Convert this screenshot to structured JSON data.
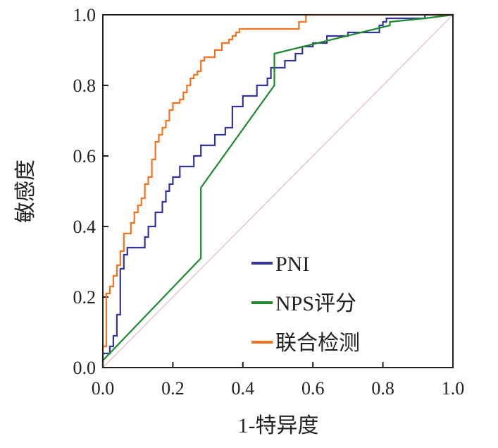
{
  "chart_data": {
    "type": "line",
    "title": "",
    "xlabel": "1-特异度",
    "ylabel": "敏感度",
    "xlim": [
      0,
      1
    ],
    "ylim": [
      0,
      1
    ],
    "xticks": [
      "0.0",
      "0.2",
      "0.4",
      "0.6",
      "0.8",
      "1.0"
    ],
    "yticks": [
      "0.0",
      "0.2",
      "0.4",
      "0.6",
      "0.8",
      "1.0"
    ],
    "grid": false,
    "legend_position": "bottom-right",
    "reference_line": {
      "x": [
        0,
        1
      ],
      "y": [
        0,
        1
      ],
      "color": "#e4b8b8"
    },
    "series": [
      {
        "name": "PNI",
        "color": "#33349a",
        "x": [
          0,
          0,
          0.02,
          0.02,
          0.03,
          0.03,
          0.04,
          0.04,
          0.05,
          0.05,
          0.06,
          0.06,
          0.07,
          0.07,
          0.12,
          0.12,
          0.13,
          0.13,
          0.15,
          0.15,
          0.17,
          0.17,
          0.18,
          0.18,
          0.19,
          0.19,
          0.2,
          0.2,
          0.22,
          0.22,
          0.26,
          0.26,
          0.28,
          0.28,
          0.32,
          0.32,
          0.35,
          0.35,
          0.37,
          0.37,
          0.4,
          0.4,
          0.44,
          0.44,
          0.47,
          0.47,
          0.48,
          0.48,
          0.52,
          0.52,
          0.55,
          0.55,
          0.57,
          0.57,
          0.6,
          0.6,
          0.64,
          0.64,
          0.7,
          0.7,
          0.79,
          0.79,
          0.8,
          0.8,
          0.81,
          0.81,
          0.84,
          0.84,
          0.92,
          0.92,
          1
        ],
        "y": [
          0,
          0.04,
          0.04,
          0.06,
          0.06,
          0.09,
          0.09,
          0.15,
          0.15,
          0.28,
          0.28,
          0.32,
          0.32,
          0.34,
          0.34,
          0.37,
          0.37,
          0.4,
          0.4,
          0.44,
          0.44,
          0.47,
          0.47,
          0.5,
          0.5,
          0.52,
          0.52,
          0.54,
          0.54,
          0.57,
          0.57,
          0.6,
          0.6,
          0.63,
          0.63,
          0.66,
          0.66,
          0.68,
          0.68,
          0.74,
          0.74,
          0.77,
          0.77,
          0.8,
          0.8,
          0.82,
          0.82,
          0.85,
          0.85,
          0.87,
          0.87,
          0.89,
          0.89,
          0.91,
          0.91,
          0.92,
          0.92,
          0.94,
          0.94,
          0.95,
          0.95,
          0.97,
          0.97,
          0.98,
          0.98,
          0.99,
          0.99,
          0.99,
          0.99,
          1,
          1
        ]
      },
      {
        "name": "NPS评分",
        "color": "#1b8a2a",
        "x": [
          0,
          0,
          0.28,
          0.28,
          0.49,
          0.49,
          0.82,
          0.82,
          0.92,
          1
        ],
        "y": [
          0,
          0.02,
          0.31,
          0.51,
          0.8,
          0.89,
          0.97,
          0.98,
          0.99,
          1
        ]
      },
      {
        "name": "联合检测",
        "color": "#f5721f",
        "x": [
          0,
          0,
          0.01,
          0.01,
          0.02,
          0.02,
          0.03,
          0.03,
          0.04,
          0.04,
          0.05,
          0.05,
          0.06,
          0.06,
          0.08,
          0.08,
          0.09,
          0.09,
          0.1,
          0.1,
          0.11,
          0.11,
          0.12,
          0.12,
          0.13,
          0.13,
          0.14,
          0.14,
          0.15,
          0.15,
          0.16,
          0.16,
          0.17,
          0.17,
          0.18,
          0.18,
          0.19,
          0.19,
          0.2,
          0.2,
          0.22,
          0.22,
          0.23,
          0.23,
          0.24,
          0.24,
          0.25,
          0.25,
          0.26,
          0.26,
          0.27,
          0.27,
          0.28,
          0.28,
          0.29,
          0.29,
          0.32,
          0.32,
          0.34,
          0.34,
          0.36,
          0.36,
          0.37,
          0.37,
          0.38,
          0.38,
          0.39,
          0.39,
          0.56,
          0.56,
          0.58,
          0.58,
          1
        ],
        "y": [
          0,
          0.06,
          0.06,
          0.21,
          0.21,
          0.23,
          0.23,
          0.26,
          0.26,
          0.29,
          0.29,
          0.33,
          0.33,
          0.38,
          0.38,
          0.41,
          0.41,
          0.44,
          0.44,
          0.46,
          0.46,
          0.48,
          0.48,
          0.52,
          0.52,
          0.54,
          0.54,
          0.59,
          0.59,
          0.64,
          0.64,
          0.66,
          0.66,
          0.68,
          0.68,
          0.7,
          0.7,
          0.73,
          0.73,
          0.75,
          0.75,
          0.76,
          0.76,
          0.78,
          0.78,
          0.8,
          0.8,
          0.82,
          0.82,
          0.83,
          0.83,
          0.84,
          0.84,
          0.87,
          0.87,
          0.88,
          0.88,
          0.9,
          0.9,
          0.92,
          0.92,
          0.93,
          0.93,
          0.94,
          0.94,
          0.95,
          0.95,
          0.96,
          0.96,
          0.98,
          0.98,
          1,
          1
        ]
      }
    ]
  }
}
